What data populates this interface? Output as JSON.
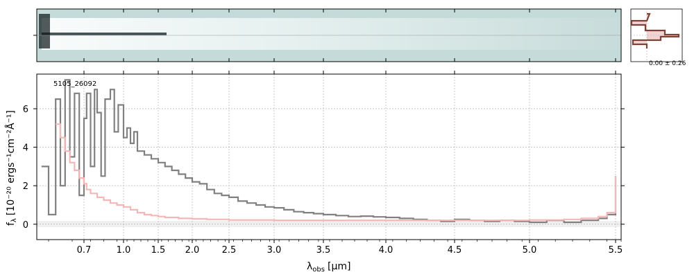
{
  "chart_data": {
    "type": "line",
    "object_id": "5105_26092",
    "xlabel_main": "λ",
    "xlabel_sub": "obs",
    "xlabel_unit": "[μm]",
    "ylabel": "f",
    "ylabel_sub": "λ",
    "ylabel_unit": "[10⁻²⁰ ergs⁻¹cm⁻²Å⁻¹]",
    "profile_label": "0.00 ± 0.26",
    "x_ticks": [
      "0.7",
      "1.0",
      "1.5",
      "2.0",
      "2.5",
      "3.0",
      "3.5",
      "4.0",
      "4.5",
      "5.0",
      "5.5"
    ],
    "x_tick_values": [
      0.7,
      1.0,
      1.5,
      2.0,
      2.5,
      3.0,
      3.5,
      4.0,
      4.5,
      5.0,
      5.5
    ],
    "y_ticks": [
      "0",
      "2",
      "4",
      "6"
    ],
    "y_tick_values": [
      0,
      2,
      4,
      6
    ],
    "xlim": [
      0.5,
      5.55
    ],
    "ylim": [
      -0.8,
      7.8
    ],
    "grid": true,
    "series": [
      {
        "color": "#808080",
        "x": [
          0.52,
          0.55,
          0.58,
          0.6,
          0.62,
          0.64,
          0.66,
          0.68,
          0.7,
          0.72,
          0.75,
          0.78,
          0.8,
          0.83,
          0.86,
          0.9,
          0.93,
          0.96,
          1.0,
          1.05,
          1.1,
          1.15,
          1.2,
          1.3,
          1.4,
          1.5,
          1.6,
          1.7,
          1.8,
          1.9,
          2.0,
          2.1,
          2.2,
          2.3,
          2.4,
          2.5,
          2.6,
          2.7,
          2.8,
          2.9,
          3.0,
          3.1,
          3.2,
          3.3,
          3.4,
          3.5,
          3.6,
          3.7,
          3.8,
          3.9,
          4.0,
          4.1,
          4.2,
          4.3,
          4.4,
          4.5,
          4.6,
          4.7,
          4.8,
          4.9,
          5.0,
          5.1,
          5.2,
          5.3,
          5.4,
          5.45,
          5.5
        ],
        "y": [
          3.0,
          0.5,
          6.5,
          2.0,
          7.5,
          3.5,
          6.8,
          1.5,
          5.5,
          6.8,
          3.0,
          7.0,
          5.8,
          2.5,
          6.5,
          7.0,
          4.8,
          6.2,
          4.5,
          5.0,
          4.2,
          4.8,
          3.8,
          3.6,
          3.4,
          3.2,
          3.0,
          2.8,
          2.6,
          2.4,
          2.2,
          2.1,
          1.8,
          1.6,
          1.5,
          1.4,
          1.2,
          1.1,
          1.0,
          0.9,
          0.85,
          0.75,
          0.65,
          0.6,
          0.55,
          0.5,
          0.45,
          0.4,
          0.42,
          0.38,
          0.35,
          0.3,
          0.25,
          0.2,
          0.15,
          0.25,
          0.2,
          0.15,
          0.2,
          0.15,
          0.1,
          0.2,
          0.1,
          0.2,
          0.3,
          0.5,
          2.5
        ]
      },
      {
        "color": "#f4b6b6",
        "x": [
          0.58,
          0.6,
          0.62,
          0.64,
          0.66,
          0.68,
          0.7,
          0.72,
          0.75,
          0.8,
          0.85,
          0.9,
          0.95,
          1.0,
          1.1,
          1.2,
          1.3,
          1.4,
          1.5,
          1.6,
          1.8,
          2.0,
          2.2,
          2.5,
          3.0,
          3.5,
          4.0,
          4.5,
          5.0,
          5.2,
          5.3,
          5.4,
          5.45,
          5.5
        ],
        "y": [
          5.2,
          4.5,
          3.8,
          3.2,
          2.8,
          2.4,
          2.1,
          1.8,
          1.6,
          1.4,
          1.25,
          1.1,
          1.0,
          0.9,
          0.75,
          0.6,
          0.5,
          0.45,
          0.4,
          0.35,
          0.3,
          0.28,
          0.25,
          0.22,
          0.2,
          0.2,
          0.2,
          0.2,
          0.22,
          0.25,
          0.3,
          0.4,
          0.6,
          2.5
        ]
      }
    ]
  }
}
